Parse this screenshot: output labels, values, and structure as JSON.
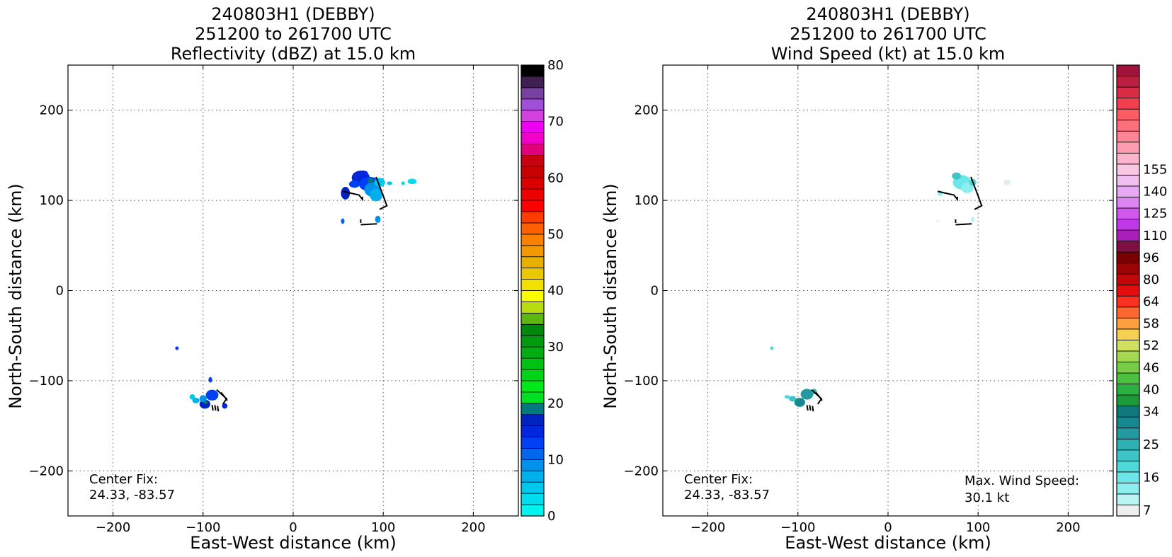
{
  "chart_data": [
    {
      "type": "heatmap",
      "title_lines": [
        "240803H1 (DEBBY)",
        "251200 to 261700 UTC",
        "Reflectivity (dBZ) at 15.0 km"
      ],
      "xlabel": "East-West distance (km)",
      "ylabel": "North-South distance (km)",
      "xlim": [
        -250,
        250
      ],
      "ylim": [
        -250,
        250
      ],
      "xticks": [
        -200,
        -100,
        0,
        100,
        200
      ],
      "yticks": [
        -200,
        -100,
        0,
        100,
        200
      ],
      "xtick_labels": [
        "−200",
        "−100",
        "0",
        "100",
        "200"
      ],
      "ytick_labels": [
        "−200",
        "−100",
        "0",
        "100",
        "200"
      ],
      "grid": true,
      "center_fix": [
        "Center Fix:",
        "24.33, -83.57"
      ],
      "colorbar": {
        "min": 0,
        "max": 80,
        "tick_values": [
          0,
          10,
          20,
          30,
          40,
          50,
          60,
          70,
          80
        ],
        "tick_labels": [
          "0",
          "10",
          "20",
          "30",
          "40",
          "50",
          "60",
          "70",
          "80"
        ],
        "colors": [
          "#00F5F0",
          "#00DEEE",
          "#00C8EC",
          "#00B0EA",
          "#0092EA",
          "#0066EE",
          "#0040F4",
          "#0026DE",
          "#0022BE",
          "#00787E",
          "#00E020",
          "#00E81A",
          "#00D418",
          "#00C216",
          "#00AE14",
          "#009A10",
          "#00880C",
          "#5EB610",
          "#B8DC10",
          "#FCFC00",
          "#F2E000",
          "#ECC800",
          "#E8B000",
          "#F29800",
          "#FC8000",
          "#FC6000",
          "#FC3C00",
          "#FC0000",
          "#EC0000",
          "#DA0000",
          "#C80000",
          "#C80010",
          "#E0007A",
          "#F000C8",
          "#F000F0",
          "#D440E0",
          "#A050D8",
          "#7840A0",
          "#402050",
          "#000000"
        ]
      },
      "echo_regions": [
        {
          "x": 75,
          "y": 125,
          "rx": 10,
          "ry": 8,
          "color": "#0026DE"
        },
        {
          "x": 85,
          "y": 118,
          "rx": 12,
          "ry": 8,
          "color": "#0040F4"
        },
        {
          "x": 88,
          "y": 112,
          "rx": 9,
          "ry": 8,
          "color": "#0092EA"
        },
        {
          "x": 92,
          "y": 106,
          "rx": 7,
          "ry": 7,
          "color": "#00B0EA"
        },
        {
          "x": 58,
          "y": 108,
          "rx": 5,
          "ry": 7,
          "color": "#0022BE"
        },
        {
          "x": 68,
          "y": 118,
          "rx": 6,
          "ry": 4,
          "color": "#0040F4"
        },
        {
          "x": 96,
          "y": 120,
          "rx": 6,
          "ry": 5,
          "color": "#00C8EC"
        },
        {
          "x": 78,
          "y": 130,
          "rx": 5,
          "ry": 3,
          "color": "#0026DE"
        },
        {
          "x": 86,
          "y": 122,
          "rx": 3,
          "ry": 3,
          "color": "#00787E"
        },
        {
          "x": 107,
          "y": 119,
          "rx": 3,
          "ry": 2,
          "color": "#00C8EC"
        },
        {
          "x": 132,
          "y": 121,
          "rx": 5,
          "ry": 3,
          "color": "#00DEEE"
        },
        {
          "x": 122,
          "y": 119,
          "rx": 2,
          "ry": 2,
          "color": "#00DEEE"
        },
        {
          "x": 94,
          "y": 79,
          "rx": 3,
          "ry": 4,
          "color": "#0092EA"
        },
        {
          "x": 55,
          "y": 77,
          "rx": 2,
          "ry": 3,
          "color": "#0066EE"
        },
        {
          "x": -129,
          "y": -64,
          "rx": 2,
          "ry": 2,
          "color": "#0040F4"
        },
        {
          "x": -90,
          "y": -116,
          "rx": 7,
          "ry": 6,
          "color": "#0040F4"
        },
        {
          "x": -98,
          "y": -126,
          "rx": 6,
          "ry": 5,
          "color": "#0022BE"
        },
        {
          "x": -100,
          "y": -120,
          "rx": 4,
          "ry": 4,
          "color": "#0092EA"
        },
        {
          "x": -108,
          "y": -122,
          "rx": 4,
          "ry": 3,
          "color": "#00B0EA"
        },
        {
          "x": -112,
          "y": -118,
          "rx": 3,
          "ry": 3,
          "color": "#00C8EC"
        },
        {
          "x": -92,
          "y": -99,
          "rx": 2,
          "ry": 3,
          "color": "#0040F4"
        },
        {
          "x": -76,
          "y": -128,
          "rx": 3,
          "ry": 3,
          "color": "#0026DE"
        },
        {
          "x": -97,
          "y": -124,
          "rx": 2,
          "ry": 2,
          "color": "#00787E"
        }
      ]
    },
    {
      "type": "heatmap",
      "title_lines": [
        "240803H1 (DEBBY)",
        "251200 to 261700 UTC",
        "Wind Speed (kt) at 15.0 km"
      ],
      "xlabel": "East-West distance (km)",
      "ylabel": "North-South distance (km)",
      "xlim": [
        -250,
        250
      ],
      "ylim": [
        -250,
        250
      ],
      "xticks": [
        -200,
        -100,
        0,
        100,
        200
      ],
      "yticks": [
        -200,
        -100,
        0,
        100,
        200
      ],
      "xtick_labels": [
        "−200",
        "−100",
        "0",
        "100",
        "200"
      ],
      "ytick_labels": [
        "−200",
        "−100",
        "0",
        "100",
        "200"
      ],
      "grid": true,
      "center_fix": [
        "Center Fix:",
        "24.33, -83.57"
      ],
      "max_wind": [
        "Max. Wind Speed:",
        "30.1 kt"
      ],
      "colorbar": {
        "tick_labels": [
          "7",
          "16",
          "25",
          "34",
          "40",
          "46",
          "52",
          "58",
          "64",
          "80",
          "96",
          "110",
          "125",
          "140",
          "155"
        ],
        "tick_bins": [
          0,
          3,
          6,
          9,
          11,
          13,
          15,
          17,
          19,
          21,
          23,
          25,
          27,
          29,
          31
        ],
        "colors": [
          "#EEEEEE",
          "#BCF4F4",
          "#8CEEEE",
          "#6CE6E6",
          "#4ED8D8",
          "#3CC4C8",
          "#2EB0B4",
          "#229AA0",
          "#188890",
          "#0E787C",
          "#1C9A3A",
          "#2CB040",
          "#4CC040",
          "#78CC48",
          "#A4D850",
          "#D2E060",
          "#F6D050",
          "#FAA040",
          "#FC6830",
          "#FC3020",
          "#E40C0C",
          "#C00808",
          "#9C0404",
          "#780000",
          "#7C1040",
          "#A820B8",
          "#C038E8",
          "#D058EC",
          "#DC84F0",
          "#E8A8F4",
          "#F0C0F0",
          "#F8C8E4",
          "#FCB4CC",
          "#FC9CB0",
          "#FC8494",
          "#FC707C",
          "#FC5C64",
          "#F04050",
          "#D82C44",
          "#BC2040",
          "#A0143C"
        ]
      },
      "echo_regions": [
        {
          "x": 82,
          "y": 120,
          "rx": 10,
          "ry": 8,
          "color": "#6CE6E6"
        },
        {
          "x": 76,
          "y": 127,
          "rx": 5,
          "ry": 4,
          "color": "#3CC4C8"
        },
        {
          "x": 88,
          "y": 114,
          "rx": 7,
          "ry": 6,
          "color": "#8CEEEE"
        },
        {
          "x": 94,
          "y": 120,
          "rx": 4,
          "ry": 4,
          "color": "#4ED8D8"
        },
        {
          "x": 58,
          "y": 108,
          "rx": 3,
          "ry": 3,
          "color": "#8CEEEE"
        },
        {
          "x": 132,
          "y": 120,
          "rx": 4,
          "ry": 3,
          "color": "#DDEEEE"
        },
        {
          "x": 94,
          "y": 79,
          "rx": 2,
          "ry": 3,
          "color": "#BCF4F4"
        },
        {
          "x": 55,
          "y": 77,
          "rx": 1,
          "ry": 1,
          "color": "#BCF4F4"
        },
        {
          "x": -129,
          "y": -64,
          "rx": 2,
          "ry": 2,
          "color": "#4ED8D8"
        },
        {
          "x": -90,
          "y": -115,
          "rx": 7,
          "ry": 6,
          "color": "#229AA0"
        },
        {
          "x": -98,
          "y": -124,
          "rx": 6,
          "ry": 5,
          "color": "#188890"
        },
        {
          "x": -106,
          "y": -120,
          "rx": 4,
          "ry": 3,
          "color": "#3CC4C8"
        },
        {
          "x": -112,
          "y": -118,
          "rx": 3,
          "ry": 2,
          "color": "#4ED8D8"
        },
        {
          "x": -82,
          "y": -112,
          "rx": 3,
          "ry": 3,
          "color": "#2EB0B4"
        }
      ]
    }
  ]
}
